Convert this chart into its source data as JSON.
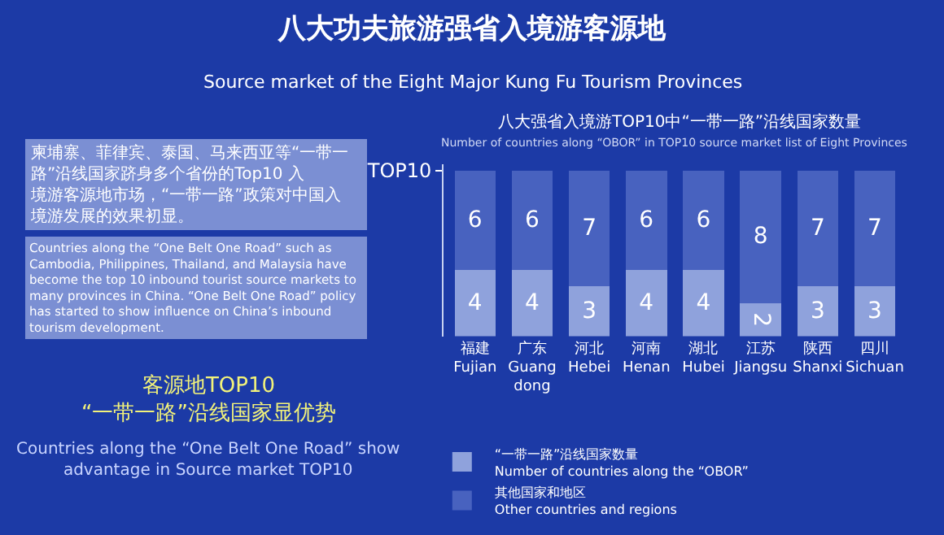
{
  "chart_data": {
    "type": "bar",
    "stacked": true,
    "title": "八大功夫旅游强省入境游客源地",
    "subtitle": "Source market of the Eight Major Kung Fu Tourism Provinces",
    "categories": [
      "福建\nFujian",
      "广东\nGuang\ndong",
      "河北\nHebei",
      "河南\nHenan",
      "湖北\nHubei",
      "江苏\nJiangsu",
      "陕西\nShanxi",
      "四川\nSichuan"
    ],
    "series": [
      {
        "name": "“一带一路”沿线国家数量\nNumber of countries along the “OBOR”",
        "color": "#8fa2dc",
        "values": [
          4,
          4,
          3,
          4,
          4,
          2,
          3,
          3
        ]
      },
      {
        "name": "其他国家和地区\nOther countries and regions",
        "color": "#4862bf",
        "values": [
          6,
          6,
          7,
          6,
          6,
          8,
          7,
          7
        ]
      }
    ],
    "ylim": [
      0,
      10.4
    ],
    "yticks": [
      {
        "value": 10,
        "label": "TOP10"
      }
    ],
    "data_labels": true,
    "grid": false,
    "legend": "bottom left",
    "annotations": [
      "八大强省入境游TOP10中“一带一路”沿线国家数量",
      "Number of countries along “OBOR” in TOP10 source market list of Eight Provinces",
      "柬埔寨、菲律宾、泰国、马来西亚等“一带一路”沿线国家跻身多个省份的Top10 入境游客源地市场，“一带一路”政策对中国入境游发展的效果初显。",
      "Countries along the “One Belt One Road” such as Cambodia, Philippines, Thailand, and Malaysia have become the top 10 inbound tourist source markets to many provinces in China. “One Belt One Road” policy has started to show influence on China’s inbound tourism development.",
      "客源地TOP10\n“一带一路”沿线国家显优势",
      "Countries along the “One Belt One Road” show\nadvantage in Source market TOP10"
    ]
  }
}
